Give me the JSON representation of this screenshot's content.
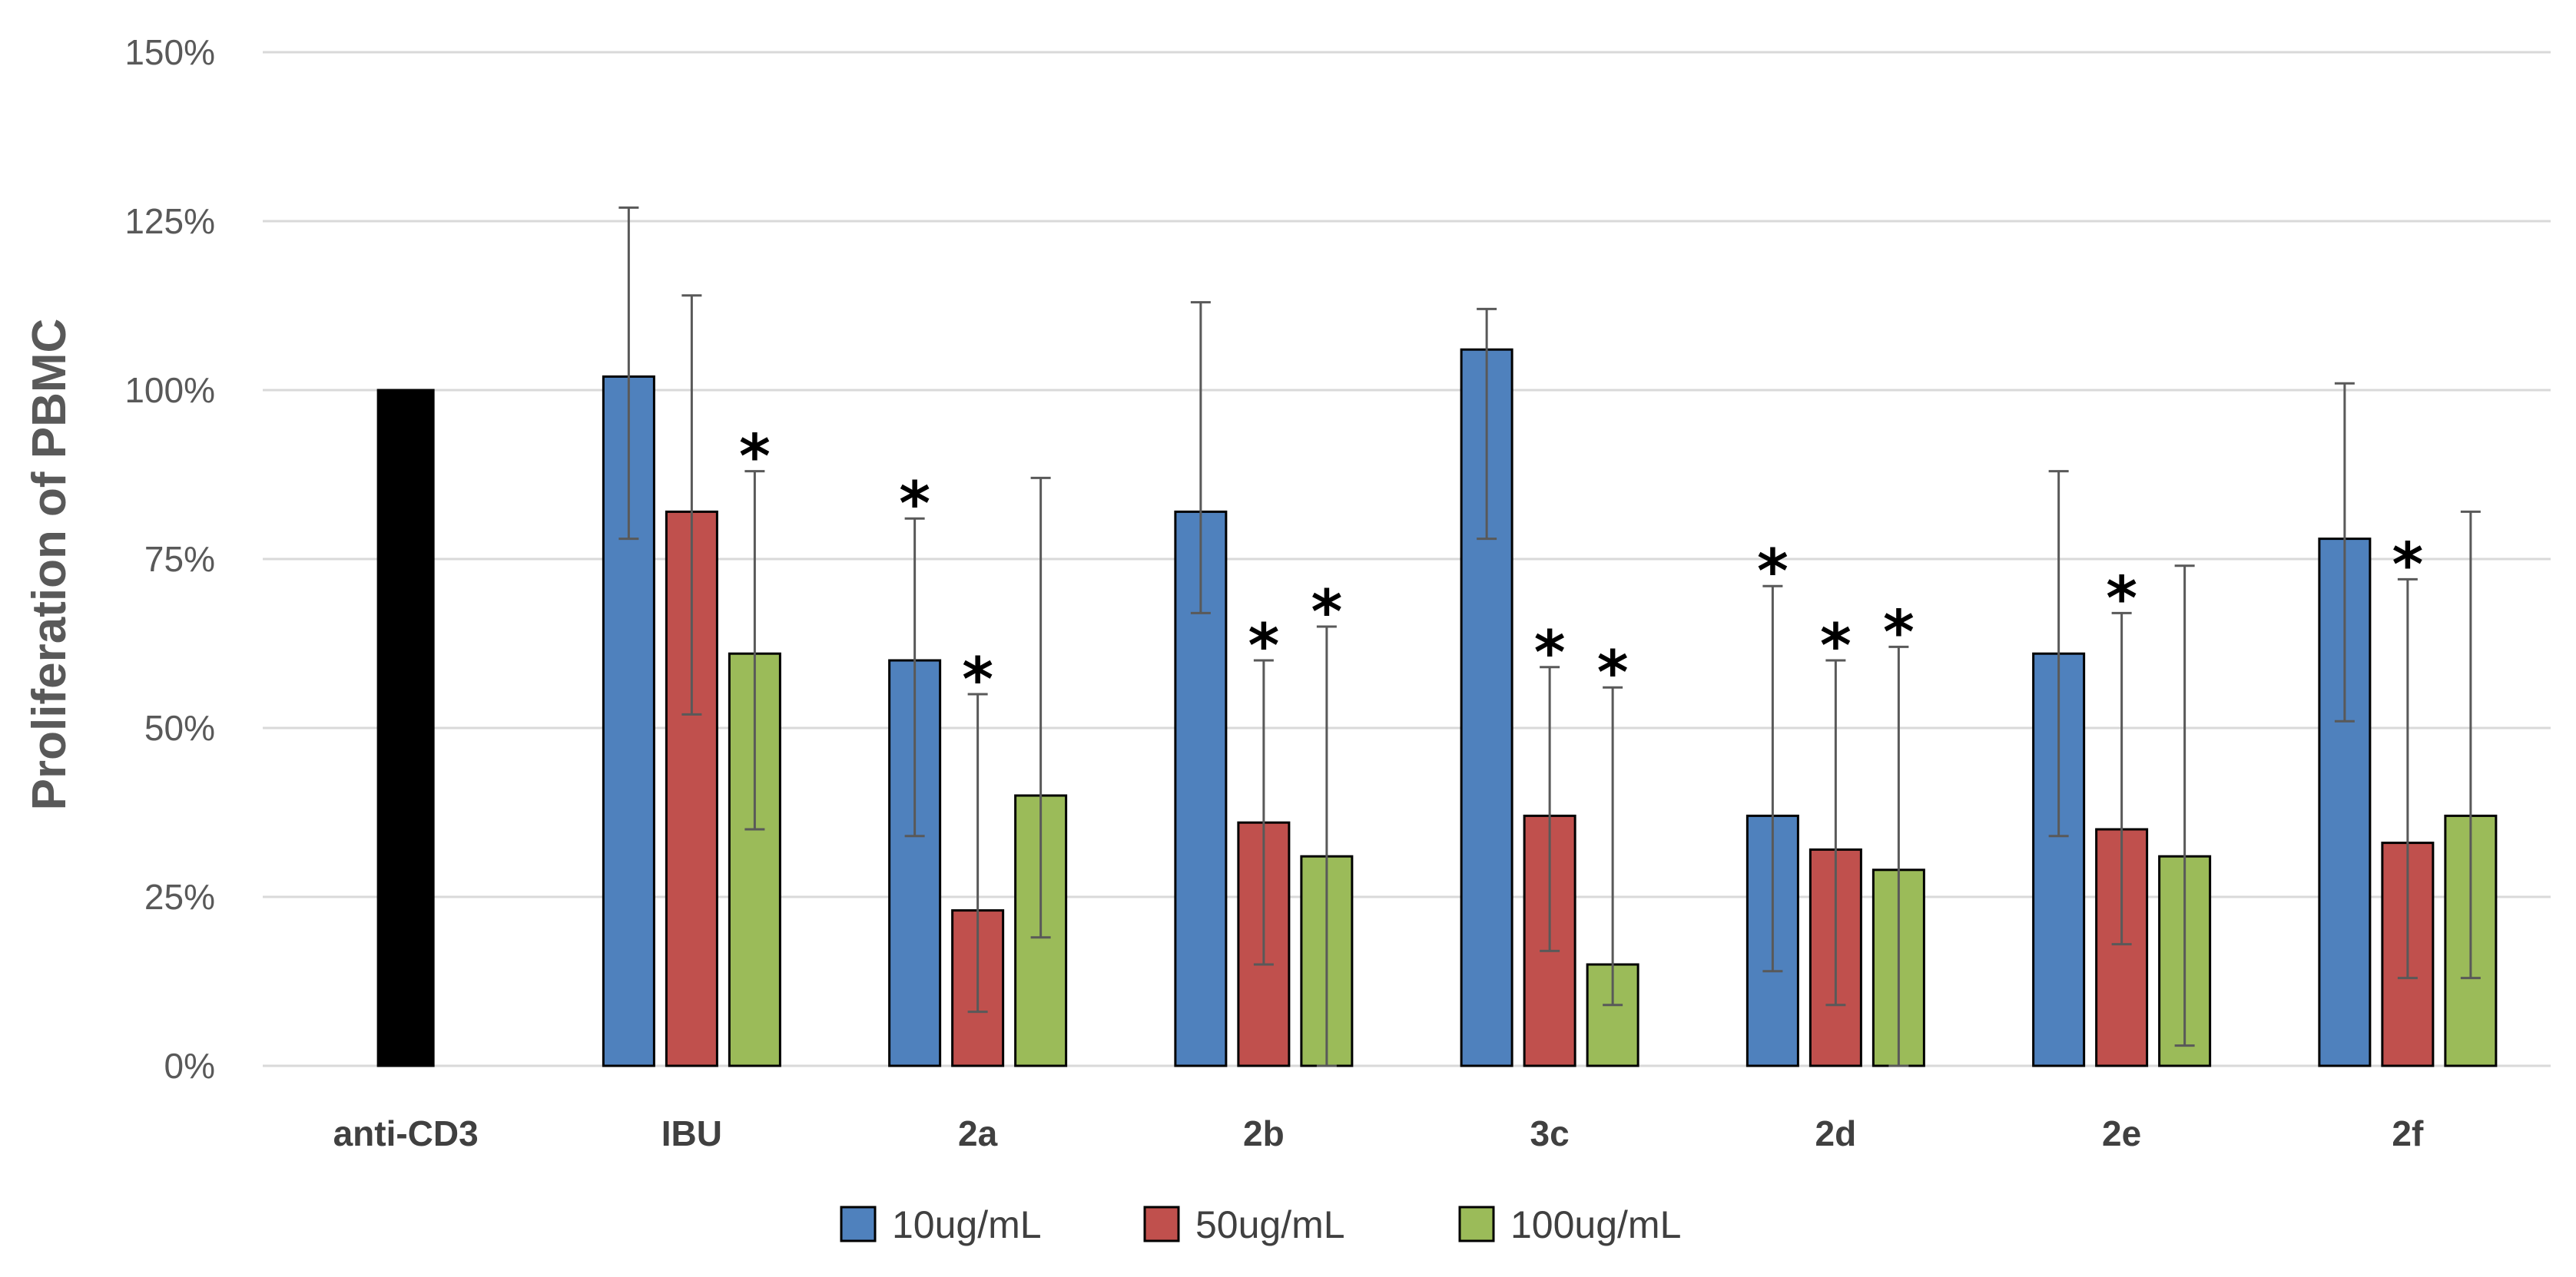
{
  "chart_data": {
    "type": "bar",
    "title": "",
    "xlabel": "",
    "ylabel": "Proliferation of PBMC",
    "ylim": [
      0,
      150
    ],
    "yticks": [
      0,
      25,
      50,
      75,
      100,
      125,
      150
    ],
    "ytick_labels": [
      "0%",
      "25%",
      "50%",
      "75%",
      "100%",
      "125%",
      "150%"
    ],
    "grid": true,
    "legend_position": "bottom",
    "significance_marker": "*",
    "colors": {
      "control": "#000000",
      "s10": "#4F81BD",
      "s50": "#C0504D",
      "s100": "#9BBB59",
      "grid": "#D9D9D9",
      "error_bar": "#595959"
    },
    "control": {
      "category": "anti-CD3",
      "value": 100
    },
    "categories": [
      "IBU",
      "2a",
      "2b",
      "3c",
      "2d",
      "2e",
      "2f"
    ],
    "series": [
      {
        "name": "10ug/mL",
        "color_key": "s10",
        "values": [
          102,
          60,
          82,
          106,
          37,
          61,
          78
        ],
        "err_low": [
          78,
          34,
          67,
          78,
          14,
          34,
          51
        ],
        "err_high": [
          127,
          81,
          113,
          112,
          71,
          88,
          101
        ],
        "significant": [
          false,
          true,
          false,
          false,
          true,
          false,
          false
        ]
      },
      {
        "name": "50ug/mL",
        "color_key": "s50",
        "values": [
          82,
          23,
          36,
          37,
          32,
          35,
          33
        ],
        "err_low": [
          52,
          8,
          15,
          17,
          9,
          18,
          13
        ],
        "err_high": [
          114,
          55,
          60,
          59,
          60,
          67,
          72
        ],
        "significant": [
          false,
          true,
          true,
          true,
          true,
          true,
          true
        ]
      },
      {
        "name": "100ug/mL",
        "color_key": "s100",
        "values": [
          61,
          40,
          31,
          15,
          29,
          31,
          37
        ],
        "err_low": [
          35,
          19,
          0,
          9,
          0,
          3,
          13
        ],
        "err_high": [
          88,
          87,
          65,
          56,
          62,
          74,
          82
        ],
        "significant": [
          true,
          false,
          true,
          true,
          true,
          false,
          false
        ]
      }
    ]
  }
}
